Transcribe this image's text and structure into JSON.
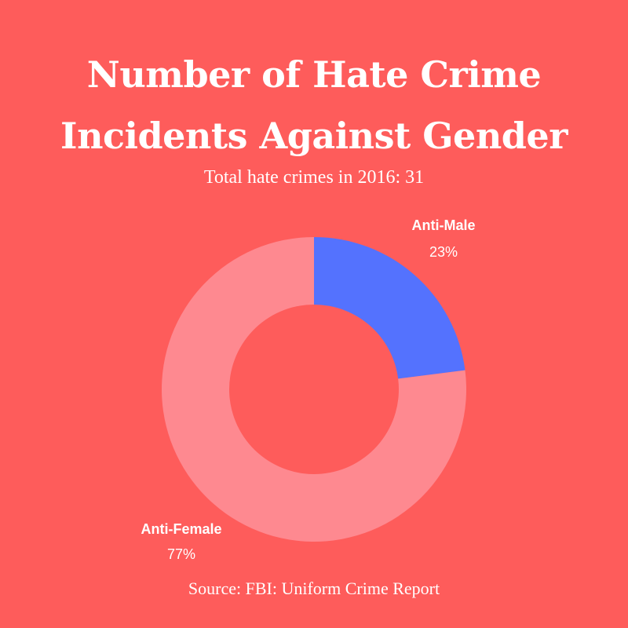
{
  "title_lines": [
    "Number of Hate Crime",
    "Incidents Against Gender"
  ],
  "subtitle": "Total hate crimes in 2016: 31",
  "source": "Source: FBI: Uniform Crime Report",
  "colors": {
    "background": "#fe5c5b",
    "anti_male": "#5472fe",
    "anti_female": "#fe8990",
    "text": "#ffffff"
  },
  "chart_data": {
    "type": "pie",
    "variant": "donut",
    "title": "Number of Hate Crime Incidents Against Gender",
    "subtitle": "Total hate crimes in 2016: 31",
    "slices": [
      {
        "label": "Anti-Male",
        "value": 23,
        "value_label": "23%",
        "color": "#5472fe"
      },
      {
        "label": "Anti-Female",
        "value": 77,
        "value_label": "77%",
        "color": "#fe8990"
      }
    ],
    "start_angle_deg": 0,
    "direction": "clockwise"
  }
}
